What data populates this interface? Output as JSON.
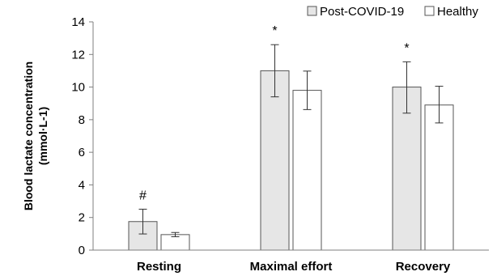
{
  "chart_data": {
    "type": "bar",
    "categories": [
      "Resting",
      "Maximal effort",
      "Recovery"
    ],
    "ylabel_line1": "Blood lactate concentration",
    "ylabel_line2": "(mmol·L-1)",
    "ylim": [
      0,
      14
    ],
    "yticks": [
      "0",
      "2",
      "4",
      "6",
      "8",
      "10",
      "12",
      "14"
    ],
    "grid": false,
    "legend_position": "top-right",
    "series": [
      {
        "name": "Post-COVID-19",
        "values": [
          1.75,
          11.0,
          10.0
        ],
        "err_low": [
          0.99,
          9.4,
          8.4
        ],
        "err_high": [
          2.51,
          12.6,
          11.55
        ],
        "markers": [
          "#",
          "*",
          "*"
        ],
        "color": "#e6e6e6"
      },
      {
        "name": "Healthy",
        "values": [
          0.95,
          9.8,
          8.9
        ],
        "err_low": [
          0.82,
          8.62,
          7.8
        ],
        "err_high": [
          1.08,
          10.98,
          10.05
        ],
        "markers": [
          "",
          "",
          ""
        ],
        "color": "#ffffff"
      }
    ]
  }
}
